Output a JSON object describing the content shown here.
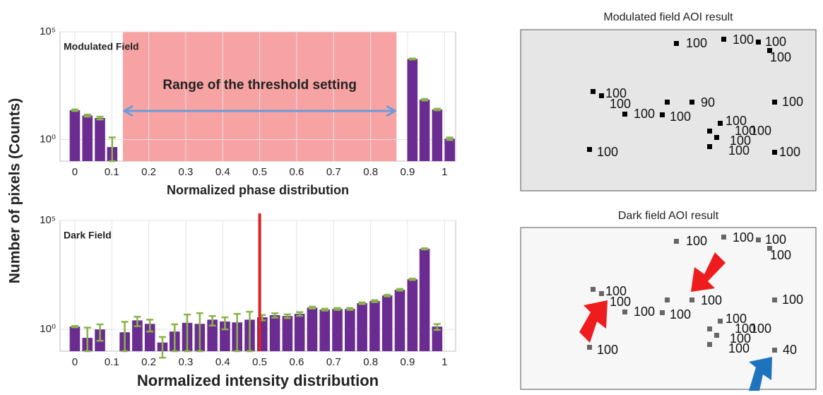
{
  "shared_ylabel": "Number of pixels (Counts)",
  "chart_data": [
    {
      "type": "bar",
      "annotation": "Modulated Field",
      "xlabel": "Normalized phase distribution",
      "x": [
        0,
        0.034,
        0.068,
        0.101,
        0.135,
        0.169,
        0.203,
        0.237,
        0.27,
        0.304,
        0.338,
        0.372,
        0.406,
        0.439,
        0.473,
        0.507,
        0.541,
        0.575,
        0.608,
        0.642,
        0.676,
        0.71,
        0.744,
        0.777,
        0.811,
        0.845,
        0.879,
        0.913,
        0.946,
        0.98,
        1.014
      ],
      "values": [
        23,
        13,
        10,
        0.45,
        null,
        null,
        null,
        null,
        null,
        null,
        null,
        null,
        null,
        null,
        null,
        null,
        null,
        null,
        null,
        null,
        null,
        null,
        null,
        null,
        null,
        null,
        null,
        5500,
        71,
        25,
        1.1
      ],
      "errors": [
        2,
        1.5,
        1.5,
        0.8,
        null,
        null,
        null,
        null,
        null,
        null,
        null,
        null,
        null,
        null,
        null,
        null,
        null,
        null,
        null,
        null,
        null,
        null,
        null,
        null,
        null,
        null,
        null,
        300,
        6,
        2,
        0.15
      ],
      "color": "#6b2c91",
      "error_color": "#8ab34a",
      "log_y": true,
      "grid": true,
      "xlim": [
        -0.04,
        1.03
      ],
      "xticks": [
        0,
        0.1,
        0.2,
        0.3,
        0.4,
        0.5,
        0.6,
        0.7,
        0.8,
        0.9,
        1
      ],
      "ylim": [
        0.1,
        100000
      ],
      "yticks": [
        {
          "value": 1,
          "label": "10⁰"
        },
        {
          "value": 100000,
          "label": "10⁵"
        }
      ],
      "shaded_range": [
        0.13,
        0.87
      ],
      "shaded_color": "#f7a3a3",
      "shaded_label": "Range of the threshold setting"
    },
    {
      "type": "bar",
      "annotation": "Dark Field",
      "xlabel": "Normalized intensity distribution",
      "x": [
        0,
        0.034,
        0.068,
        0.101,
        0.135,
        0.169,
        0.203,
        0.237,
        0.27,
        0.304,
        0.338,
        0.372,
        0.406,
        0.439,
        0.473,
        0.507,
        0.541,
        0.575,
        0.608,
        0.642,
        0.676,
        0.71,
        0.744,
        0.777,
        0.811,
        0.845,
        0.879,
        0.913,
        0.946,
        0.98,
        1.014
      ],
      "values": [
        1.35,
        0.41,
        1.0,
        null,
        0.74,
        2.6,
        1.8,
        0.25,
        0.8,
        2.0,
        1.8,
        2.8,
        2.3,
        2.1,
        2.8,
        3.6,
        4.5,
        4.1,
        5.2,
        10,
        8.1,
        8.7,
        8.7,
        16,
        20,
        36,
        66,
        200,
        5000,
        1.35,
        null
      ],
      "errors": [
        0.1,
        0.8,
        0.7,
        null,
        1.5,
        1.2,
        1.0,
        0.2,
        0.9,
        2.8,
        3.8,
        1.3,
        1.3,
        3.1,
        3.7,
        1.0,
        1.0,
        0.8,
        1.0,
        1,
        0.8,
        0.9,
        0.9,
        1.5,
        2,
        3,
        6,
        15,
        300,
        0.4,
        null
      ],
      "color": "#6b2c91",
      "error_color": "#8ab34a",
      "log_y": true,
      "grid": true,
      "xlim": [
        -0.04,
        1.03
      ],
      "xticks": [
        0,
        0.1,
        0.2,
        0.3,
        0.4,
        0.5,
        0.6,
        0.7,
        0.8,
        0.9,
        1
      ],
      "ylim": [
        0.1,
        100000
      ],
      "yticks": [
        {
          "value": 1,
          "label": "10⁰"
        },
        {
          "value": 100000,
          "label": "10⁵"
        }
      ],
      "threshold_line": 0.5,
      "threshold_color": "#e02020"
    }
  ],
  "aoi_panels": [
    {
      "title": "Modulated field AOI result",
      "labels": [
        "100",
        "100",
        "100",
        "100",
        "100",
        "100",
        "100",
        "100",
        "90",
        "100",
        "100",
        "100",
        "100",
        "100",
        "100",
        "100",
        "100"
      ]
    },
    {
      "title": "Dark field AOI result",
      "labels": [
        "100",
        "100",
        "100",
        "100",
        "100",
        "100",
        "100",
        "100",
        "100",
        "100",
        "100",
        "100",
        "100",
        "100",
        "100",
        "100",
        "40"
      ]
    }
  ]
}
